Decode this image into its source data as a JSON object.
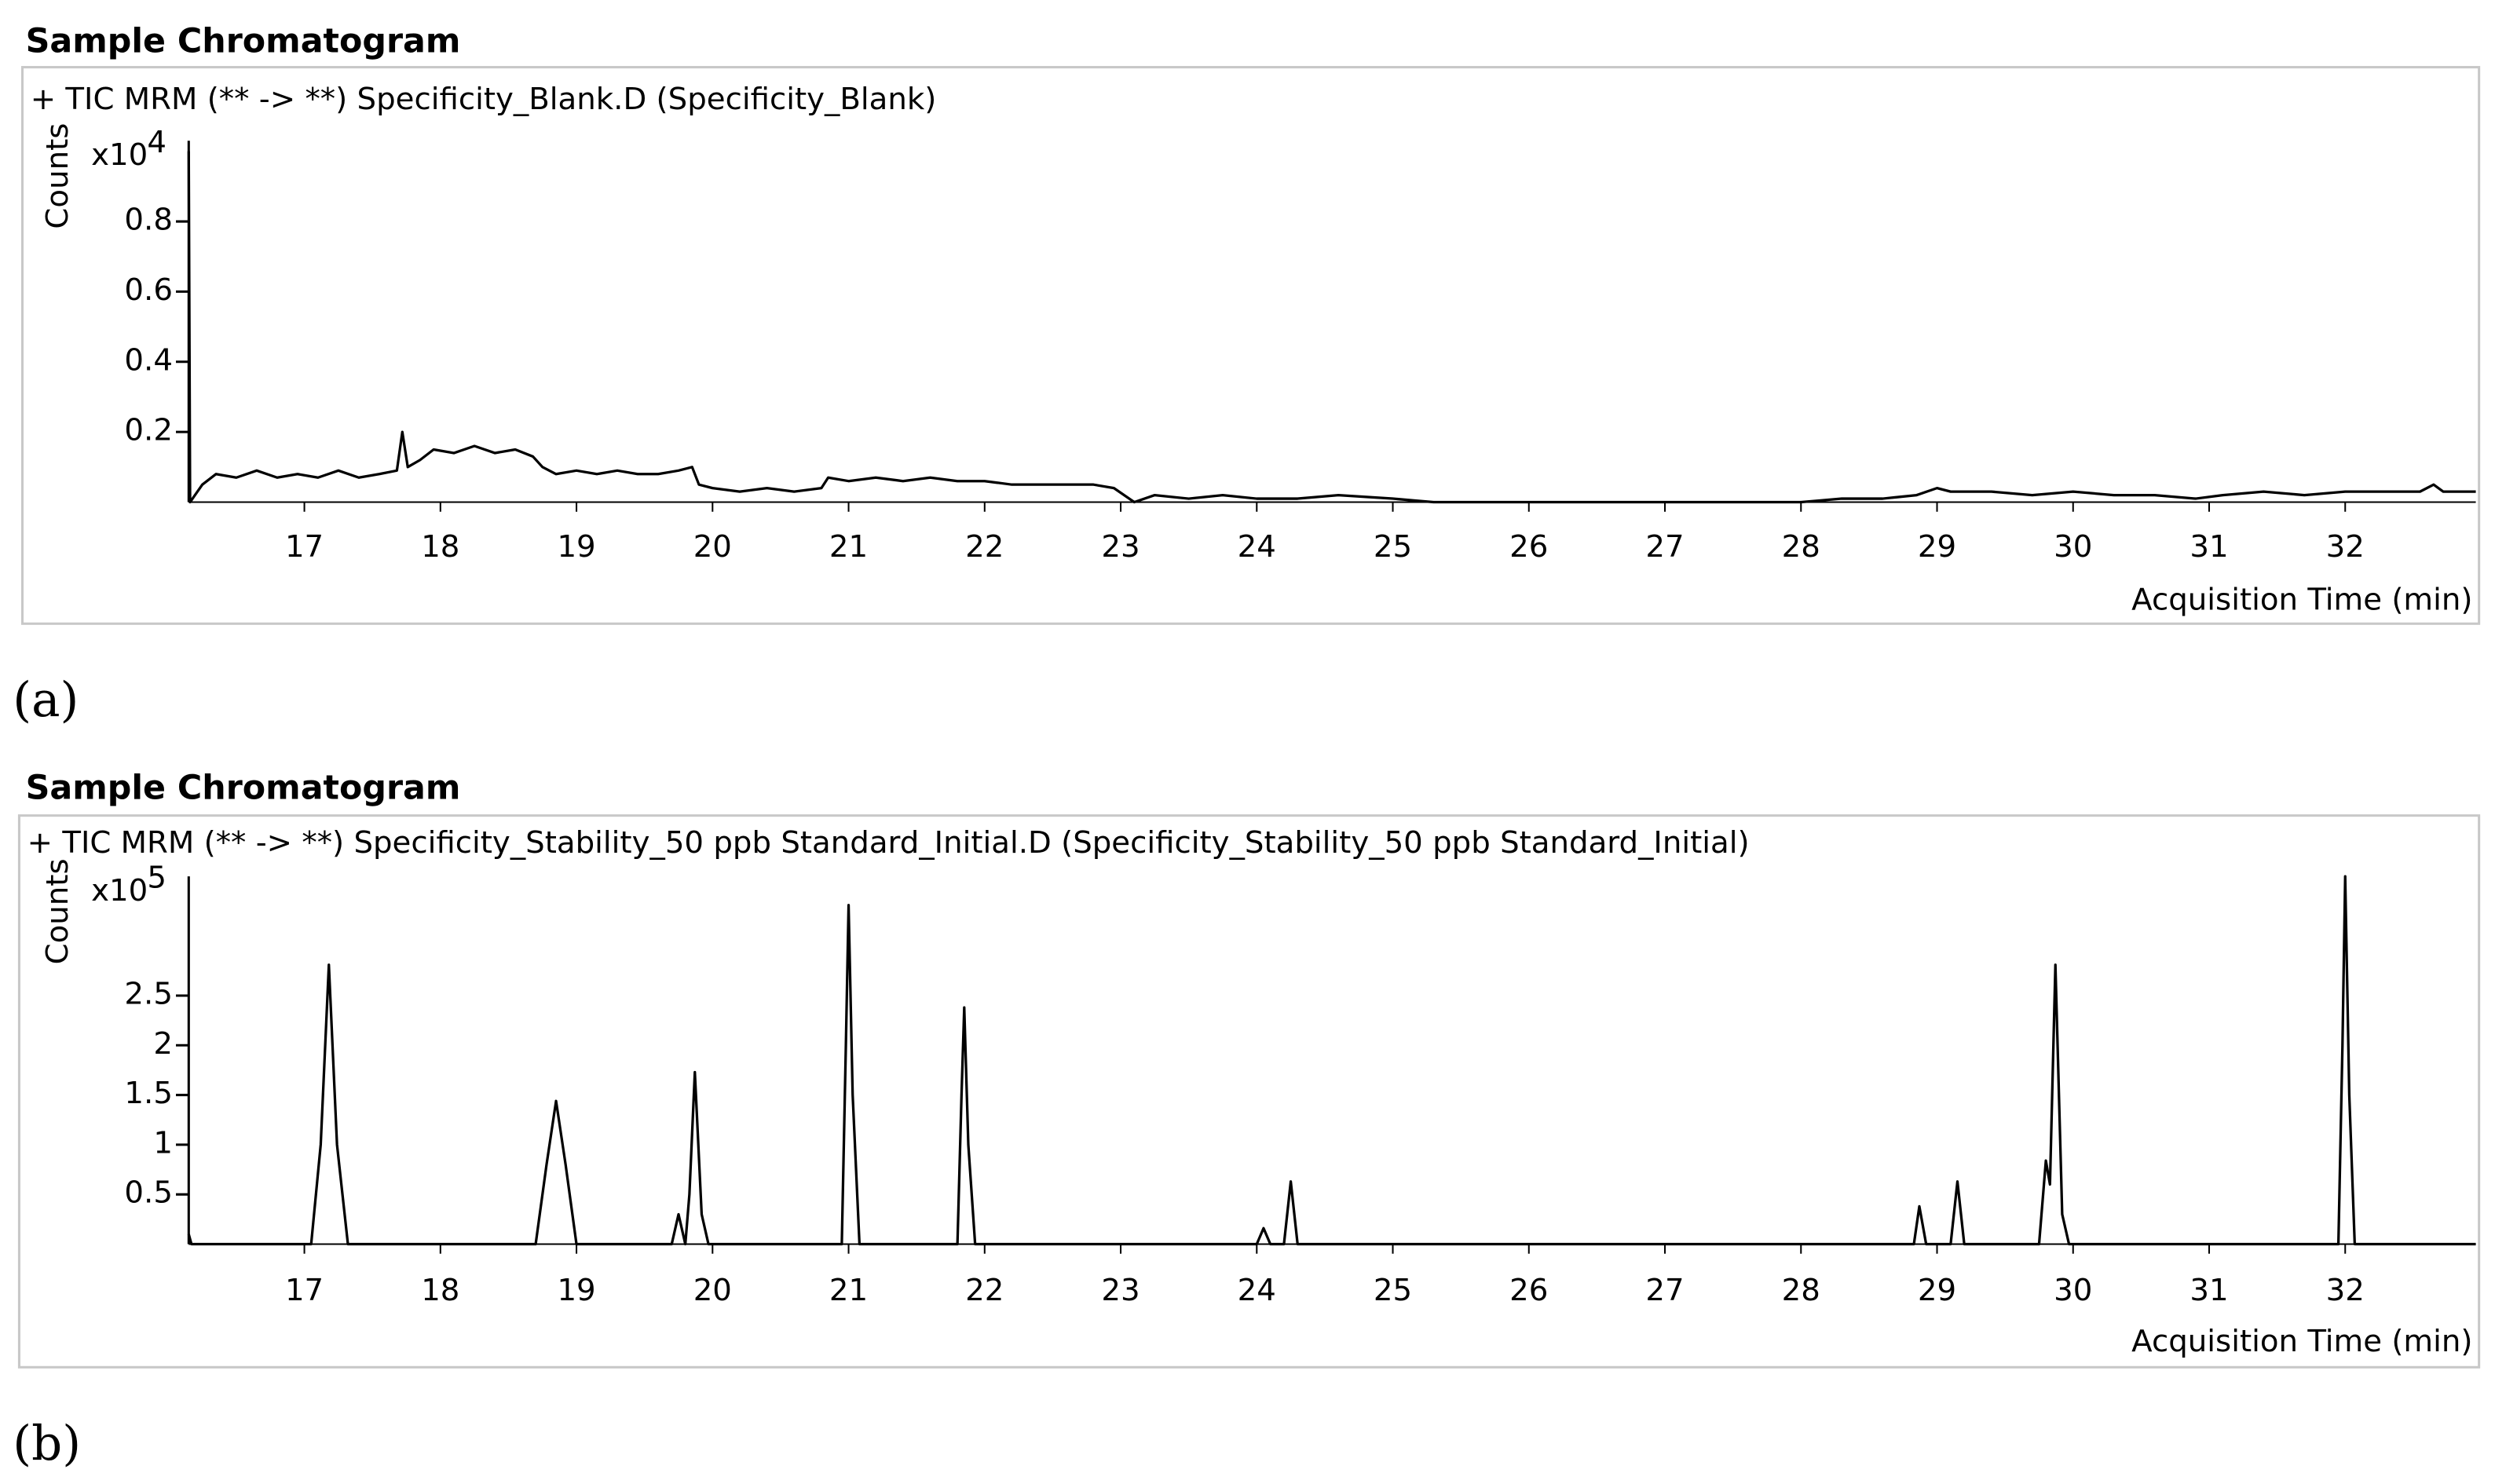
{
  "chart_data": [
    {
      "type": "line",
      "panel_label": "(a)",
      "title": "Sample Chromatogram",
      "subtitle": "+ TIC MRM (** -> **) Specificity_Blank.D (Specificity_Blank)",
      "ylabel": "Counts",
      "y_scale": "x10",
      "y_scale_exponent": "4",
      "xlabel": "Acquisition Time (min)",
      "color": "#000000",
      "xlim": [
        16.15,
        32.96
      ],
      "xticks": [
        17,
        18,
        19,
        20,
        21,
        22,
        23,
        24,
        25,
        26,
        27,
        28,
        29,
        30,
        31,
        32
      ],
      "ylim": [
        0,
        1.03
      ],
      "yticks": [
        0.2,
        0.4,
        0.6,
        0.8
      ],
      "x": [
        16.15,
        16.16,
        16.25,
        16.35,
        16.5,
        16.65,
        16.8,
        16.95,
        17.1,
        17.25,
        17.4,
        17.55,
        17.68,
        17.72,
        17.76,
        17.85,
        17.95,
        18.1,
        18.25,
        18.4,
        18.55,
        18.68,
        18.75,
        18.85,
        19.0,
        19.15,
        19.3,
        19.45,
        19.6,
        19.75,
        19.85,
        19.9,
        20.0,
        20.2,
        20.4,
        20.6,
        20.8,
        20.85,
        21.0,
        21.2,
        21.4,
        21.6,
        21.8,
        22.0,
        22.2,
        22.4,
        22.6,
        22.8,
        22.95,
        23.1,
        23.25,
        23.5,
        23.75,
        24.0,
        24.3,
        24.6,
        25.0,
        25.3,
        26.0,
        27.0,
        28.0,
        28.3,
        28.6,
        28.85,
        29.0,
        29.1,
        29.4,
        29.7,
        30.0,
        30.3,
        30.6,
        30.9,
        31.1,
        31.4,
        31.7,
        32.0,
        32.3,
        32.55,
        32.65,
        32.72,
        32.96
      ],
      "values": [
        1.0,
        0,
        0.05,
        0.08,
        0.07,
        0.09,
        0.07,
        0.08,
        0.07,
        0.09,
        0.07,
        0.08,
        0.09,
        0.2,
        0.1,
        0.12,
        0.15,
        0.14,
        0.16,
        0.14,
        0.15,
        0.13,
        0.1,
        0.08,
        0.09,
        0.08,
        0.09,
        0.08,
        0.08,
        0.09,
        0.1,
        0.05,
        0.04,
        0.03,
        0.04,
        0.03,
        0.04,
        0.07,
        0.06,
        0.07,
        0.06,
        0.07,
        0.06,
        0.06,
        0.05,
        0.05,
        0.05,
        0.05,
        0.04,
        0.0,
        0.02,
        0.01,
        0.02,
        0.01,
        0.01,
        0.02,
        0.01,
        0.0,
        0.0,
        0.0,
        0.0,
        0.01,
        0.01,
        0.02,
        0.04,
        0.03,
        0.03,
        0.02,
        0.03,
        0.02,
        0.02,
        0.01,
        0.02,
        0.03,
        0.02,
        0.03,
        0.03,
        0.03,
        0.05,
        0.03,
        0.03
      ]
    },
    {
      "type": "line",
      "panel_label": "(b)",
      "title": "Sample Chromatogram",
      "subtitle": "+ TIC MRM (** -> **) Specificity_Stability_50 ppb Standard_Initial.D (Specificity_Stability_50 ppb Standard_Initial)",
      "ylabel": "Counts",
      "y_scale": "x10",
      "y_scale_exponent": "5",
      "xlabel": "Acquisition Time (min)",
      "color": "#000000",
      "xlim": [
        16.15,
        32.96
      ],
      "xticks": [
        17,
        18,
        19,
        20,
        21,
        22,
        23,
        24,
        25,
        26,
        27,
        28,
        29,
        30,
        31,
        32
      ],
      "ylim": [
        0,
        3.7
      ],
      "yticks": [
        0.5,
        1,
        1.5,
        2,
        2.5
      ],
      "x": [
        16.15,
        16.17,
        17.05,
        17.12,
        17.18,
        17.24,
        17.32,
        18.7,
        18.78,
        18.85,
        18.92,
        19.0,
        19.7,
        19.75,
        19.8,
        19.83,
        19.87,
        19.92,
        19.97,
        20.95,
        20.98,
        21.0,
        21.03,
        21.08,
        21.8,
        21.83,
        21.85,
        21.88,
        21.93,
        24.0,
        24.05,
        24.1,
        24.2,
        24.25,
        24.3,
        28.83,
        28.87,
        28.92,
        29.1,
        29.15,
        29.2,
        29.75,
        29.8,
        29.83,
        29.87,
        29.92,
        29.97,
        31.95,
        31.98,
        32.0,
        32.03,
        32.07,
        32.96
      ],
      "values": [
        0.1,
        0,
        0,
        1.0,
        2.81,
        1.0,
        0,
        0,
        0.8,
        1.44,
        0.8,
        0,
        0,
        0.3,
        0,
        0.5,
        1.73,
        0.3,
        0,
        0,
        2.0,
        3.41,
        1.5,
        0,
        0,
        1.5,
        2.38,
        1.0,
        0,
        0,
        0.16,
        0,
        0,
        0.63,
        0,
        0,
        0.38,
        0,
        0,
        0.63,
        0,
        0,
        0.84,
        0.6,
        2.81,
        0.3,
        0,
        0,
        2.0,
        3.7,
        1.5,
        0,
        0
      ]
    }
  ]
}
